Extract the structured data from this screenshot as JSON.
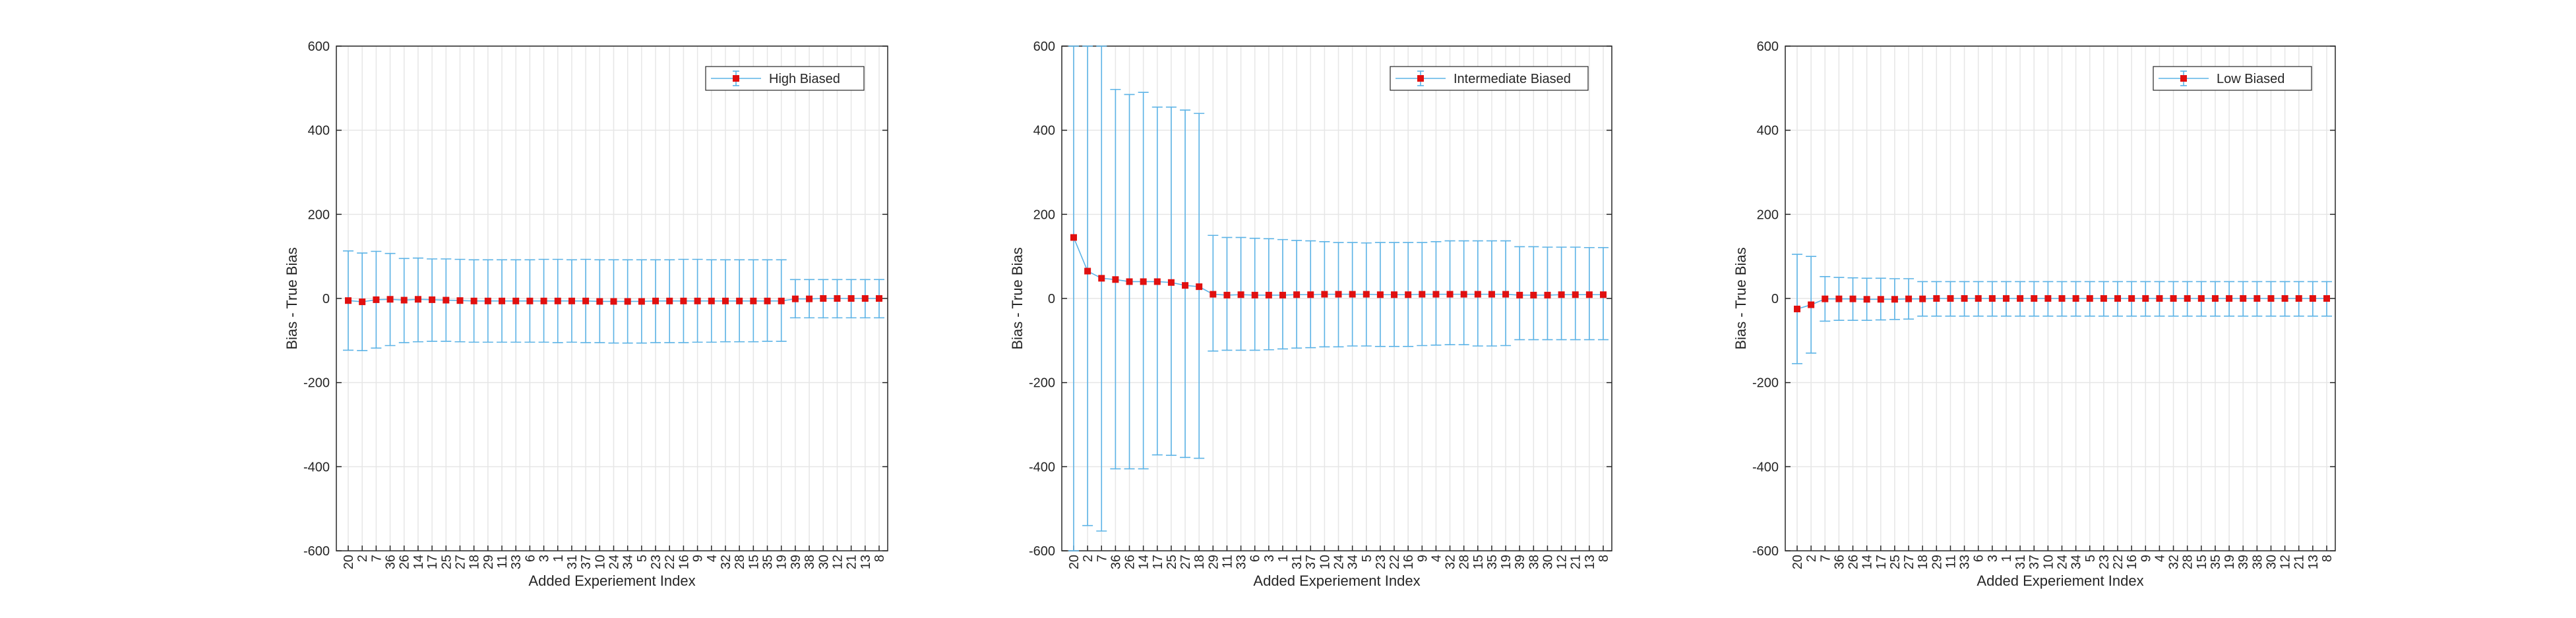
{
  "chart_data": [
    {
      "type": "errorbar",
      "xlabel": "Added Experiement Index",
      "ylabel": "Bias - True Bias",
      "ylim": [
        -600,
        600
      ],
      "yticks": [
        -600,
        -400,
        -200,
        0,
        200,
        400,
        600
      ],
      "categories": [
        "20",
        "2",
        "7",
        "36",
        "26",
        "14",
        "17",
        "25",
        "27",
        "18",
        "29",
        "11",
        "33",
        "6",
        "3",
        "1",
        "31",
        "37",
        "10",
        "24",
        "34",
        "5",
        "23",
        "22",
        "16",
        "9",
        "4",
        "32",
        "28",
        "15",
        "35",
        "19",
        "39",
        "38",
        "30",
        "12",
        "21",
        "13",
        "8"
      ],
      "grid": true,
      "legend_position": "top-right",
      "series": [
        {
          "name": "High Biased",
          "values": [
            -5,
            -8,
            -3,
            -2,
            -4,
            -2,
            -3,
            -4,
            -5,
            -6,
            -6,
            -6,
            -6,
            -6,
            -6,
            -6,
            -6,
            -6,
            -7,
            -7,
            -7,
            -7,
            -6,
            -6,
            -6,
            -6,
            -6,
            -6,
            -6,
            -6,
            -6,
            -6,
            -1,
            -1,
            0,
            0,
            0,
            0,
            0
          ],
          "upper": [
            113,
            108,
            112,
            107,
            95,
            96,
            94,
            94,
            93,
            92,
            92,
            92,
            92,
            92,
            93,
            93,
            92,
            93,
            92,
            92,
            92,
            92,
            92,
            92,
            93,
            93,
            92,
            92,
            92,
            92,
            92,
            92,
            45,
            45,
            45,
            45,
            45,
            45,
            45
          ],
          "lower": [
            -123,
            -124,
            -118,
            -112,
            -105,
            -103,
            -102,
            -102,
            -103,
            -104,
            -104,
            -104,
            -104,
            -104,
            -104,
            -105,
            -104,
            -105,
            -105,
            -106,
            -106,
            -106,
            -105,
            -105,
            -105,
            -104,
            -104,
            -103,
            -103,
            -103,
            -102,
            -102,
            -46,
            -46,
            -46,
            -46,
            -46,
            -46,
            -46
          ]
        }
      ]
    },
    {
      "type": "errorbar",
      "xlabel": "Added Experiement Index",
      "ylabel": "Bias - True Bias",
      "ylim": [
        -600,
        600
      ],
      "yticks": [
        -600,
        -400,
        -200,
        0,
        200,
        400,
        600
      ],
      "categories": [
        "20",
        "2",
        "7",
        "36",
        "26",
        "14",
        "17",
        "25",
        "27",
        "18",
        "29",
        "11",
        "33",
        "6",
        "3",
        "1",
        "31",
        "37",
        "10",
        "24",
        "34",
        "5",
        "23",
        "22",
        "16",
        "9",
        "4",
        "32",
        "28",
        "15",
        "35",
        "19",
        "39",
        "38",
        "30",
        "12",
        "21",
        "13",
        "8"
      ],
      "grid": true,
      "legend_position": "top-right",
      "series": [
        {
          "name": "Intermediate Biased",
          "values": [
            145,
            65,
            48,
            45,
            40,
            40,
            40,
            38,
            31,
            28,
            10,
            8,
            9,
            8,
            8,
            8,
            9,
            9,
            10,
            10,
            10,
            10,
            9,
            9,
            9,
            10,
            10,
            10,
            10,
            10,
            10,
            10,
            8,
            8,
            8,
            9,
            9,
            9,
            9
          ],
          "upper": [
            600,
            600,
            600,
            497,
            485,
            490,
            455,
            455,
            448,
            440,
            150,
            145,
            145,
            143,
            142,
            140,
            138,
            137,
            135,
            133,
            133,
            132,
            133,
            133,
            133,
            133,
            135,
            137,
            137,
            137,
            137,
            137,
            123,
            123,
            122,
            122,
            122,
            121,
            121
          ],
          "lower": [
            -600,
            -540,
            -553,
            -405,
            -405,
            -405,
            -372,
            -373,
            -378,
            -380,
            -125,
            -123,
            -123,
            -123,
            -122,
            -120,
            -118,
            -117,
            -115,
            -115,
            -113,
            -113,
            -114,
            -114,
            -114,
            -112,
            -111,
            -110,
            -110,
            -113,
            -113,
            -112,
            -98,
            -98,
            -98,
            -98,
            -98,
            -98,
            -98
          ]
        }
      ]
    },
    {
      "type": "errorbar",
      "xlabel": "Added Experiement Index",
      "ylabel": "Bias - True Bias",
      "ylim": [
        -600,
        600
      ],
      "yticks": [
        -600,
        -400,
        -200,
        0,
        200,
        400,
        600
      ],
      "categories": [
        "20",
        "2",
        "7",
        "36",
        "26",
        "14",
        "17",
        "25",
        "27",
        "18",
        "29",
        "11",
        "33",
        "6",
        "3",
        "1",
        "31",
        "37",
        "10",
        "24",
        "34",
        "5",
        "23",
        "22",
        "16",
        "9",
        "4",
        "32",
        "28",
        "15",
        "35",
        "19",
        "39",
        "38",
        "30",
        "12",
        "21",
        "13",
        "8"
      ],
      "grid": true,
      "legend_position": "top-right",
      "series": [
        {
          "name": "Low Biased",
          "values": [
            -25,
            -15,
            -1,
            -1,
            -1,
            -2,
            -2,
            -2,
            -1,
            -1,
            0,
            0,
            0,
            0,
            0,
            0,
            0,
            0,
            0,
            0,
            0,
            0,
            0,
            0,
            0,
            0,
            0,
            0,
            0,
            0,
            0,
            0,
            0,
            0,
            0,
            0,
            0,
            0,
            0
          ],
          "upper": [
            105,
            100,
            52,
            50,
            49,
            48,
            48,
            47,
            47,
            40,
            40,
            40,
            40,
            40,
            40,
            40,
            40,
            40,
            40,
            40,
            40,
            40,
            40,
            40,
            40,
            40,
            40,
            40,
            40,
            40,
            40,
            40,
            40,
            40,
            40,
            40,
            40,
            40,
            40
          ],
          "lower": [
            -155,
            -130,
            -54,
            -52,
            -52,
            -52,
            -51,
            -50,
            -49,
            -42,
            -42,
            -42,
            -42,
            -42,
            -42,
            -42,
            -42,
            -42,
            -42,
            -42,
            -42,
            -42,
            -42,
            -42,
            -42,
            -42,
            -42,
            -42,
            -42,
            -42,
            -42,
            -42,
            -42,
            -42,
            -42,
            -42,
            -42,
            -42,
            -42
          ]
        }
      ]
    }
  ],
  "colors": {
    "errorbar": "#5cb3e6",
    "marker": "#e01010",
    "axis": "#262626",
    "grid": "#e6e6e6"
  }
}
